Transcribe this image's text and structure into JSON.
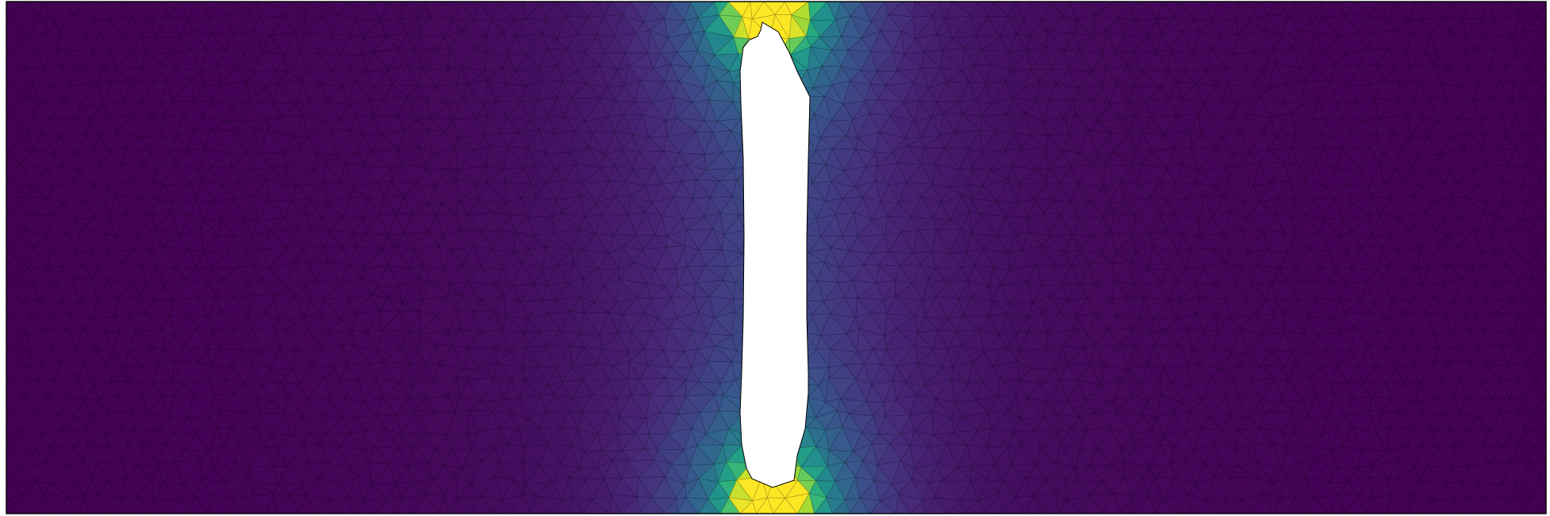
{
  "figure": {
    "kind": "finite-element-mesh-field",
    "colormap": "viridis",
    "mesh_element": "triangle",
    "mesh_edge_color": "#000000",
    "background_color": "#ffffff",
    "hole_fill_color": "#ffffff",
    "border_color": "#000000"
  },
  "colormap_stops": [
    "#440154",
    "#472c7a",
    "#3b518b",
    "#2c718e",
    "#21908d",
    "#27ad81",
    "#5cc863",
    "#aadc32",
    "#fde725"
  ],
  "field": {
    "description_note": "",
    "peak_regions": [
      "top-of-slot",
      "bottom-of-slot"
    ],
    "min_value": 0,
    "max_value": 1
  }
}
